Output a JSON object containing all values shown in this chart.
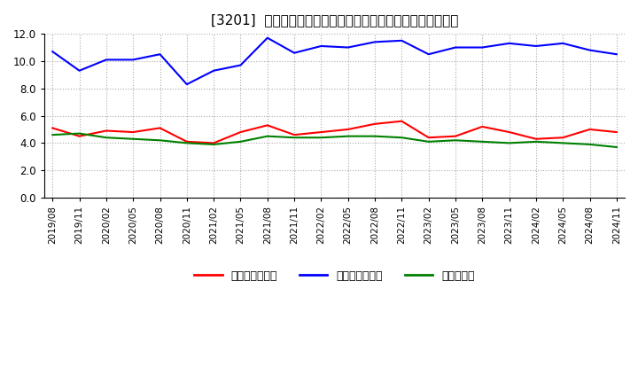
{
  "title": "[3201]  売上債権回転率、買入債務回転率、在庫回転率の推移",
  "x_labels": [
    "2019/08",
    "2019/11",
    "2020/02",
    "2020/05",
    "2020/08",
    "2020/11",
    "2021/02",
    "2021/05",
    "2021/08",
    "2021/11",
    "2022/02",
    "2022/05",
    "2022/08",
    "2022/11",
    "2023/02",
    "2023/05",
    "2023/08",
    "2023/11",
    "2024/02",
    "2024/05",
    "2024/08",
    "2024/11"
  ],
  "receivables_turnover": [
    5.1,
    4.5,
    4.9,
    4.8,
    5.1,
    4.1,
    4.0,
    4.8,
    5.3,
    4.6,
    4.8,
    5.0,
    5.4,
    5.6,
    4.4,
    4.5,
    5.2,
    4.8,
    4.3,
    4.4,
    5.0,
    4.8
  ],
  "payables_turnover": [
    10.7,
    9.3,
    10.1,
    10.1,
    10.5,
    8.3,
    9.3,
    9.7,
    11.7,
    10.6,
    11.1,
    11.0,
    11.4,
    11.5,
    10.5,
    11.0,
    11.0,
    11.3,
    11.1,
    11.3,
    10.8,
    10.5
  ],
  "inventory_turnover": [
    4.6,
    4.7,
    4.4,
    4.3,
    4.2,
    4.0,
    3.9,
    4.1,
    4.5,
    4.4,
    4.4,
    4.5,
    4.5,
    4.4,
    4.1,
    4.2,
    4.1,
    4.0,
    4.1,
    4.0,
    3.9,
    3.7
  ],
  "color_receivables": "#ff0000",
  "color_payables": "#0000ff",
  "color_inventory": "#008000",
  "ylim": [
    0.0,
    12.0
  ],
  "yticks": [
    0.0,
    2.0,
    4.0,
    6.0,
    8.0,
    10.0,
    12.0
  ],
  "bg_color": "#ffffff",
  "grid_color": "#aaaaaa",
  "legend_receivables": "売上債権回転率",
  "legend_payables": "買入債務回転率",
  "legend_inventory": "在庫回転率"
}
